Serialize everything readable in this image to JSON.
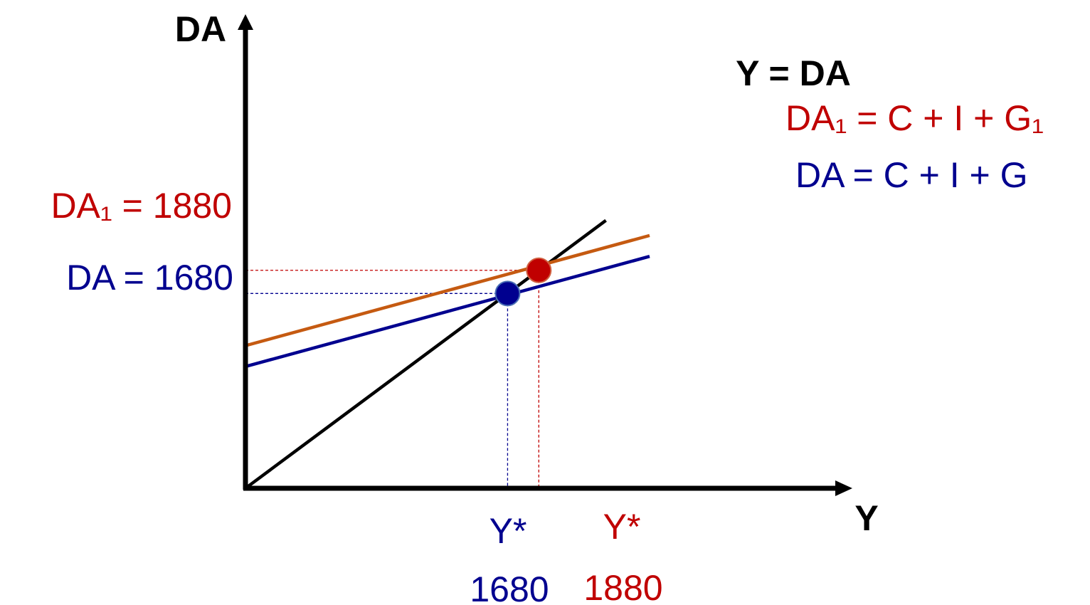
{
  "colors": {
    "black": "#000000",
    "blue": "#00008f",
    "red": "#c00000",
    "orange": "#c55a11"
  },
  "chart_data": {
    "type": "line",
    "title": "",
    "xlabel": "Y",
    "ylabel": "DA",
    "xlim": [
      0,
      2500
    ],
    "ylim": [
      0,
      2300
    ],
    "grid": false,
    "series": [
      {
        "name": "Y = DA",
        "color": "#000000",
        "x": [
          0,
          2310
        ],
        "y": [
          0,
          2310
        ]
      },
      {
        "name": "DA₁ = C + I + G₁",
        "color": "#c55a11",
        "x": [
          0,
          2590
        ],
        "y": [
          1230,
          2180
        ]
      },
      {
        "name": "DA = C + I + G",
        "color": "#00008f",
        "x": [
          0,
          2590
        ],
        "y": [
          1050,
          2000
        ]
      }
    ],
    "points": [
      {
        "x": 1680,
        "y": 1680,
        "color": "#00008f"
      },
      {
        "x": 1880,
        "y": 1880,
        "color": "#c00000"
      }
    ],
    "annotations": {
      "da_level": "DA = 1680",
      "da1_level": "DA₁ = 1880",
      "ystar_blue": "Y*",
      "ystar_red": "Y*",
      "y_blue_value": "1680",
      "y_red_value": "1880"
    }
  }
}
